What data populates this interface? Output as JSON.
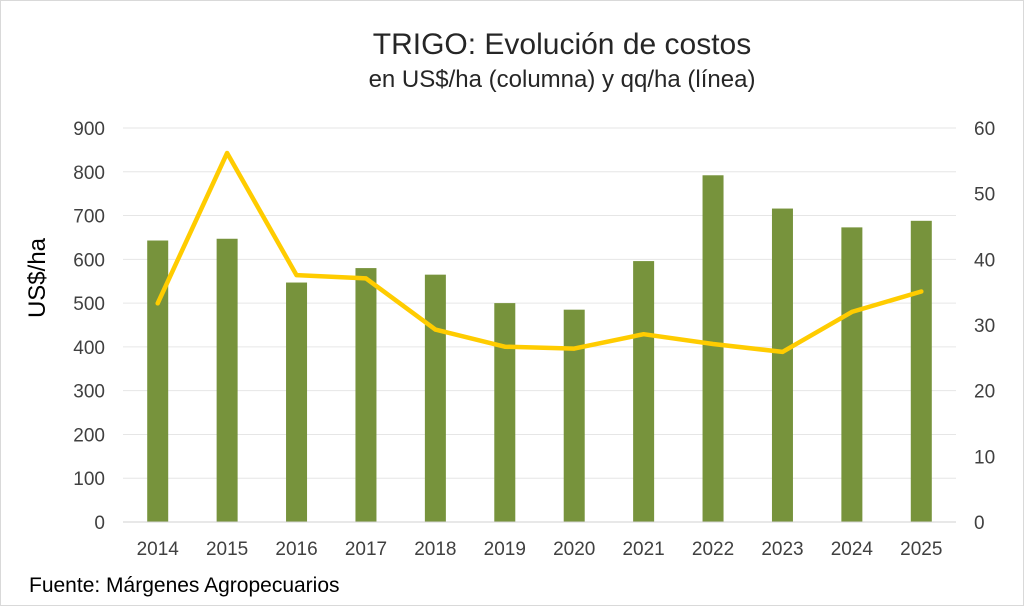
{
  "chart_data": {
    "type": "bar",
    "title": "TRIGO: Evolución de costos",
    "subtitle": "en US$/ha (columna) y qq/ha (línea)",
    "ylabel": "US$/ha",
    "y2label": "",
    "source": "Fuente: Márgenes Agropecuarios",
    "categories": [
      "2014",
      "2015",
      "2016",
      "2017",
      "2018",
      "2019",
      "2020",
      "2021",
      "2022",
      "2023",
      "2024",
      "2025"
    ],
    "ylim": [
      0,
      900
    ],
    "yticks": [
      0,
      100,
      200,
      300,
      400,
      500,
      600,
      700,
      800,
      900
    ],
    "y2lim": [
      0,
      60
    ],
    "y2ticks": [
      0,
      10,
      20,
      30,
      40,
      50,
      60
    ],
    "grid": true,
    "series": [
      {
        "type": "bar",
        "axis": "left",
        "color": "#77933c",
        "values": [
          643,
          647,
          547,
          580,
          565,
          500,
          485,
          596,
          792,
          716,
          673,
          688
        ]
      },
      {
        "type": "line",
        "axis": "right",
        "color": "#ffcc00",
        "values": [
          33.3,
          56.2,
          37.6,
          37.1,
          29.3,
          26.7,
          26.4,
          28.6,
          27.1,
          25.9,
          32.0,
          35.1
        ]
      }
    ]
  }
}
